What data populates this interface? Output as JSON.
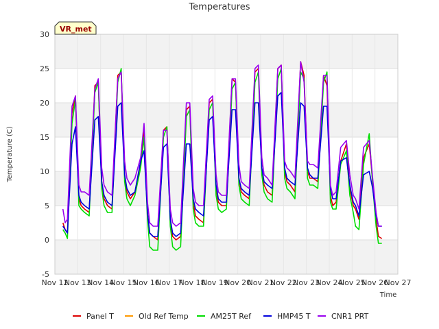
{
  "chart_data": {
    "type": "line",
    "title": "Temperatures",
    "xlabel": "Time",
    "ylabel": "Temperature (C)",
    "badge": "VR_met",
    "ylim": [
      -5,
      30
    ],
    "yticks": [
      -5,
      0,
      5,
      10,
      15,
      20,
      25,
      30
    ],
    "xlim": [
      0,
      15
    ],
    "xticks": [
      0,
      1,
      2,
      3,
      4,
      5,
      6,
      7,
      8,
      9,
      10,
      11,
      12,
      13,
      14,
      15
    ],
    "xtick_labels": [
      "Nov 12",
      "Nov 13",
      "Nov 14",
      "Nov 15",
      "Nov 16",
      "Nov 17",
      "Nov 18",
      "Nov 19",
      "Nov 20",
      "Nov 21",
      "Nov 22",
      "Nov 23",
      "Nov 24",
      "Nov 25",
      "Nov 26",
      "Nov 27"
    ],
    "series_x": [
      0.35,
      0.45,
      0.55,
      0.75,
      0.9,
      1.05,
      1.15,
      1.3,
      1.5,
      1.75,
      1.9,
      2.05,
      2.15,
      2.3,
      2.5,
      2.75,
      2.9,
      3.05,
      3.15,
      3.3,
      3.5,
      3.75,
      3.9,
      4.05,
      4.15,
      4.3,
      4.5,
      4.75,
      4.9,
      5.05,
      5.15,
      5.3,
      5.5,
      5.75,
      5.9,
      6.05,
      6.15,
      6.3,
      6.5,
      6.75,
      6.9,
      7.05,
      7.15,
      7.3,
      7.5,
      7.75,
      7.9,
      8.05,
      8.15,
      8.3,
      8.5,
      8.75,
      8.9,
      9.05,
      9.15,
      9.3,
      9.5,
      9.75,
      9.9,
      10.05,
      10.15,
      10.3,
      10.5,
      10.75,
      10.9,
      11.05,
      11.15,
      11.3,
      11.5,
      11.75,
      11.9,
      12.05,
      12.15,
      12.3,
      12.5,
      12.75,
      12.9,
      13.05,
      13.15,
      13.3,
      13.5,
      13.75,
      13.9,
      14.05,
      14.15,
      14.3
    ],
    "series": [
      {
        "name": "Panel T",
        "color": "#dd0000",
        "values": [
          2.5,
          1.5,
          1.0,
          18.5,
          21.0,
          6.0,
          5.0,
          4.5,
          4.0,
          22.5,
          23.0,
          8.5,
          6.0,
          5.0,
          4.5,
          24.0,
          24.5,
          9.5,
          7.0,
          6.0,
          7.0,
          11.0,
          16.0,
          4.0,
          1.0,
          0.5,
          0.0,
          16.0,
          16.5,
          3.0,
          0.5,
          0.0,
          0.5,
          19.0,
          19.5,
          5.5,
          3.5,
          3.0,
          2.5,
          20.0,
          20.5,
          7.5,
          5.5,
          5.0,
          5.0,
          23.5,
          23.0,
          9.0,
          7.0,
          6.5,
          6.0,
          24.5,
          25.0,
          10.5,
          8.0,
          7.0,
          6.5,
          25.0,
          25.5,
          10.0,
          8.5,
          8.0,
          7.0,
          26.0,
          24.0,
          10.0,
          9.0,
          9.0,
          8.5,
          24.0,
          22.5,
          6.5,
          5.0,
          5.5,
          11.5,
          14.0,
          7.5,
          5.0,
          4.5,
          3.0,
          12.0,
          14.0,
          8.5,
          3.0,
          0.5,
          0.2
        ]
      },
      {
        "name": "Old Ref Temp",
        "color": "#ff9900",
        "values": []
      },
      {
        "name": "AM25T Ref",
        "color": "#00dd00",
        "values": [
          1.5,
          1.0,
          0.2,
          17.0,
          20.5,
          5.0,
          4.5,
          4.0,
          3.5,
          21.5,
          23.0,
          7.5,
          5.0,
          4.0,
          4.0,
          23.0,
          25.0,
          8.5,
          6.0,
          5.0,
          6.5,
          10.5,
          15.0,
          3.0,
          -1.0,
          -1.5,
          -1.5,
          15.0,
          16.5,
          2.0,
          -1.0,
          -1.5,
          -1.0,
          18.0,
          19.0,
          4.5,
          2.5,
          2.0,
          2.0,
          19.0,
          20.0,
          6.5,
          4.5,
          4.0,
          4.5,
          22.0,
          23.0,
          8.0,
          6.0,
          5.5,
          5.0,
          23.0,
          24.5,
          9.5,
          7.0,
          6.0,
          5.5,
          23.5,
          25.0,
          9.0,
          7.5,
          7.0,
          6.0,
          24.5,
          23.5,
          9.0,
          8.0,
          8.0,
          7.5,
          23.0,
          24.5,
          5.5,
          4.5,
          4.5,
          11.0,
          13.0,
          6.5,
          4.0,
          2.0,
          1.5,
          11.0,
          15.5,
          8.0,
          2.0,
          -0.5,
          -0.5
        ]
      },
      {
        "name": "HMP45 T",
        "color": "#0000dd",
        "values": [
          2.0,
          1.5,
          1.0,
          14.0,
          16.5,
          6.5,
          5.5,
          5.0,
          4.5,
          17.5,
          18.0,
          8.5,
          6.5,
          5.5,
          5.0,
          19.5,
          20.0,
          9.5,
          7.5,
          6.5,
          7.0,
          11.5,
          13.0,
          4.0,
          1.0,
          0.5,
          0.5,
          13.5,
          14.0,
          3.0,
          1.0,
          0.5,
          1.0,
          14.0,
          14.0,
          6.0,
          4.5,
          4.0,
          3.5,
          17.5,
          18.0,
          8.0,
          6.0,
          5.5,
          5.5,
          19.0,
          19.0,
          9.0,
          7.5,
          7.0,
          6.5,
          20.0,
          20.0,
          10.5,
          8.5,
          8.0,
          7.5,
          21.0,
          21.5,
          10.5,
          9.0,
          8.5,
          8.0,
          20.0,
          19.5,
          10.5,
          9.5,
          9.0,
          9.0,
          19.5,
          19.5,
          7.5,
          6.0,
          6.0,
          11.5,
          12.0,
          8.0,
          5.5,
          5.0,
          3.5,
          9.5,
          10.0,
          7.5,
          3.5,
          2.0,
          2.0
        ]
      },
      {
        "name": "CNR1 PRT",
        "color": "#9900ee",
        "values": [
          4.5,
          2.5,
          3.0,
          19.5,
          21.0,
          8.0,
          7.0,
          7.0,
          6.5,
          22.0,
          23.5,
          10.5,
          8.0,
          7.0,
          6.5,
          23.5,
          24.5,
          11.5,
          9.0,
          8.0,
          9.0,
          12.0,
          17.0,
          5.5,
          2.5,
          2.0,
          2.0,
          16.0,
          16.0,
          4.5,
          2.5,
          2.0,
          2.5,
          20.0,
          20.0,
          7.5,
          5.5,
          5.0,
          5.0,
          20.5,
          21.0,
          9.5,
          7.0,
          6.5,
          6.5,
          23.5,
          23.5,
          11.0,
          8.5,
          8.0,
          7.5,
          25.0,
          25.5,
          12.0,
          9.5,
          9.0,
          8.0,
          25.0,
          25.5,
          11.5,
          10.5,
          10.0,
          9.0,
          26.0,
          23.0,
          11.5,
          11.0,
          11.0,
          10.5,
          24.0,
          24.0,
          8.0,
          6.5,
          7.0,
          13.5,
          14.5,
          9.5,
          6.5,
          6.0,
          4.5,
          13.5,
          14.5,
          9.0,
          4.0,
          2.0,
          2.0
        ]
      }
    ],
    "legend_position": "bottom"
  }
}
